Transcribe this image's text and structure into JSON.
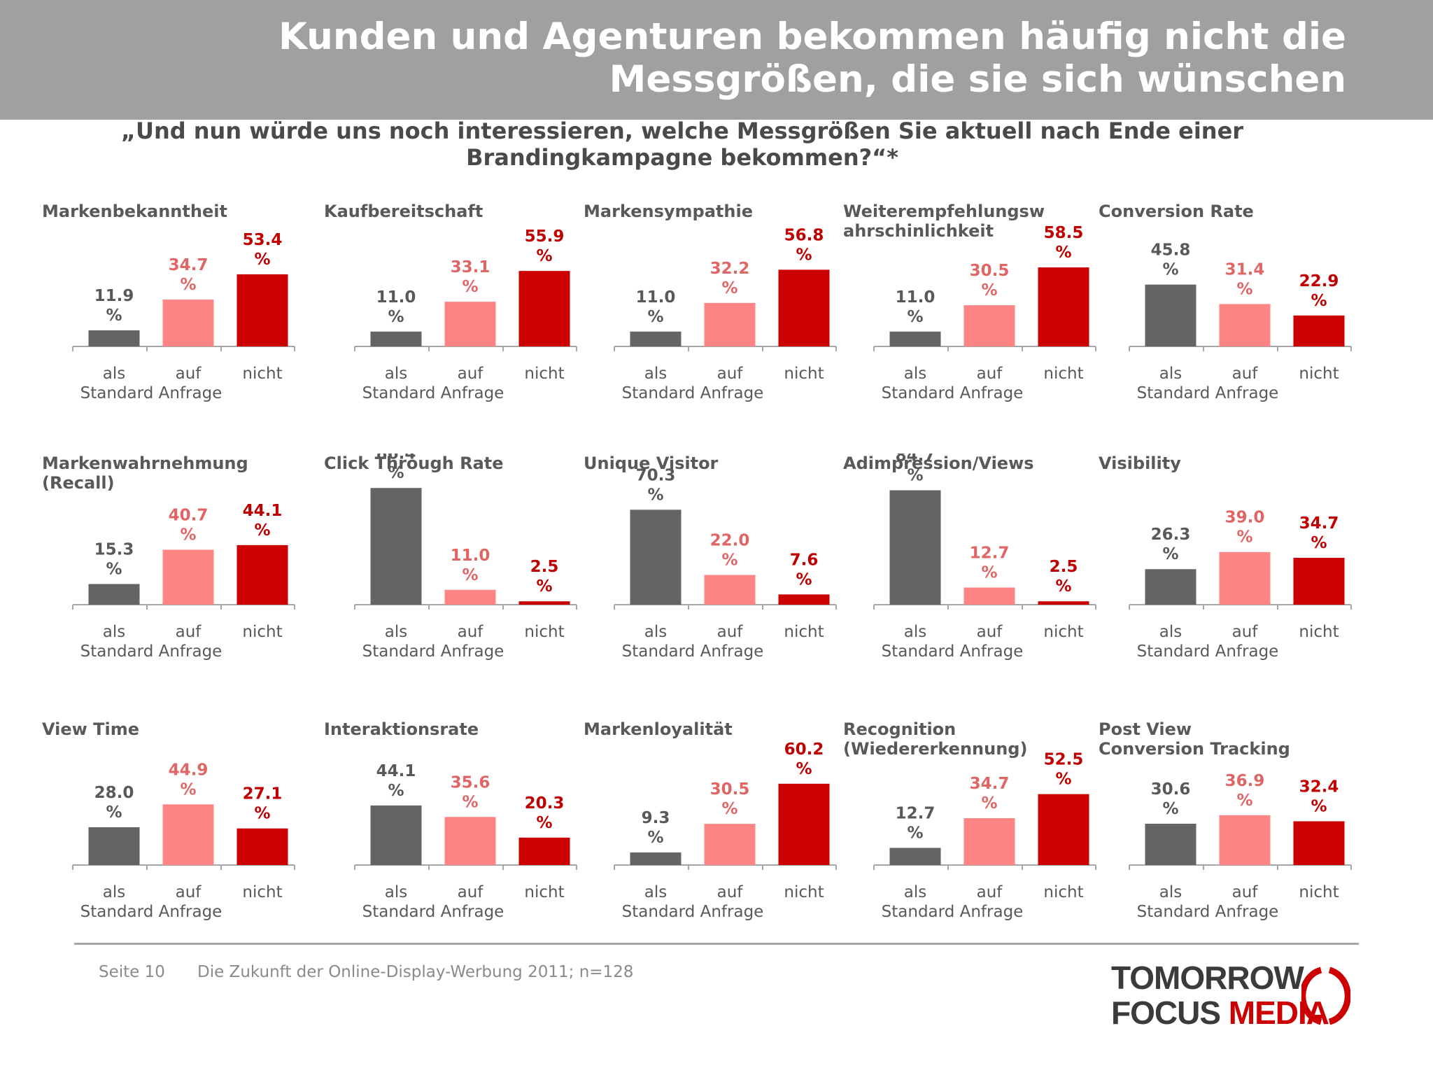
{
  "header": {
    "title_line1": "Kunden und Agenturen bekommen häufig nicht die",
    "title_line2": "Messgrößen, die sie sich wünschen"
  },
  "question": {
    "line1": "„Und nun würde uns noch interessieren, welche Messgrößen Sie aktuell nach Ende einer",
    "line2": "Brandingkampagne bekommen?“*"
  },
  "colors": {
    "header_bg": "#a0a0a0",
    "als_standard": "#646366",
    "auf_anfrage": "#ff8585",
    "nicht": "#cc0000",
    "label_dark": "#595959",
    "label_light": "#e06666",
    "label_red": "#c00000"
  },
  "category_labels": {
    "line1": [
      "als",
      "auf",
      "nicht"
    ],
    "line2": "Standard Anfrage"
  },
  "chart_data": [
    {
      "type": "bar",
      "title": "Markenbekanntheit",
      "categories": [
        "als Standard",
        "auf Anfrage",
        "nicht"
      ],
      "values": [
        11.9,
        34.7,
        53.4
      ]
    },
    {
      "type": "bar",
      "title": "Kaufbereitschaft",
      "categories": [
        "als Standard",
        "auf Anfrage",
        "nicht"
      ],
      "values": [
        11.0,
        33.1,
        55.9
      ]
    },
    {
      "type": "bar",
      "title": "Markensympathie",
      "categories": [
        "als Standard",
        "auf Anfrage",
        "nicht"
      ],
      "values": [
        11.0,
        32.2,
        56.8
      ]
    },
    {
      "type": "bar",
      "title": "Weiterempfehlungsw ahrschinlichkeit",
      "categories": [
        "als Standard",
        "auf Anfrage",
        "nicht"
      ],
      "values": [
        11.0,
        30.5,
        58.5
      ]
    },
    {
      "type": "bar",
      "title": "Conversion Rate",
      "categories": [
        "als Standard",
        "auf Anfrage",
        "nicht"
      ],
      "values": [
        45.8,
        31.4,
        22.9
      ]
    },
    {
      "type": "bar",
      "title": "Markenwahrnehmung (Recall)",
      "categories": [
        "als Standard",
        "auf Anfrage",
        "nicht"
      ],
      "values": [
        15.3,
        40.7,
        44.1
      ]
    },
    {
      "type": "bar",
      "title": "Click Through Rate",
      "categories": [
        "als Standard",
        "auf Anfrage",
        "nicht"
      ],
      "values": [
        86.4,
        11.0,
        2.5
      ]
    },
    {
      "type": "bar",
      "title": "Unique Visitor",
      "categories": [
        "als Standard",
        "auf Anfrage",
        "nicht"
      ],
      "values": [
        70.3,
        22.0,
        7.6
      ]
    },
    {
      "type": "bar",
      "title": "Adimpression/Views",
      "categories": [
        "als Standard",
        "auf Anfrage",
        "nicht"
      ],
      "values": [
        84.7,
        12.7,
        2.5
      ]
    },
    {
      "type": "bar",
      "title": "Visibility",
      "categories": [
        "als Standard",
        "auf Anfrage",
        "nicht"
      ],
      "values": [
        26.3,
        39.0,
        34.7
      ]
    },
    {
      "type": "bar",
      "title": "View Time",
      "categories": [
        "als Standard",
        "auf Anfrage",
        "nicht"
      ],
      "values": [
        28.0,
        44.9,
        27.1
      ]
    },
    {
      "type": "bar",
      "title": "Interaktionsrate",
      "categories": [
        "als Standard",
        "auf Anfrage",
        "nicht"
      ],
      "values": [
        44.1,
        35.6,
        20.3
      ]
    },
    {
      "type": "bar",
      "title": "Markenloyalität",
      "categories": [
        "als Standard",
        "auf Anfrage",
        "nicht"
      ],
      "values": [
        9.3,
        30.5,
        60.2
      ]
    },
    {
      "type": "bar",
      "title": "Recognition (Wiedererkennung)",
      "categories": [
        "als Standard",
        "auf Anfrage",
        "nicht"
      ],
      "values": [
        12.7,
        34.7,
        52.5
      ]
    },
    {
      "type": "bar",
      "title": "Post View Conversion Tracking",
      "categories": [
        "als Standard",
        "auf Anfrage",
        "nicht"
      ],
      "values": [
        30.6,
        36.9,
        32.4
      ]
    }
  ],
  "footer": {
    "page": "Seite 10",
    "source": "Die Zukunft der Online-Display-Werbung 2011; n=128"
  },
  "logo": {
    "line1": "TOMORROW",
    "line2_a": "FOCUS ",
    "line2_b": "MEDIA"
  }
}
